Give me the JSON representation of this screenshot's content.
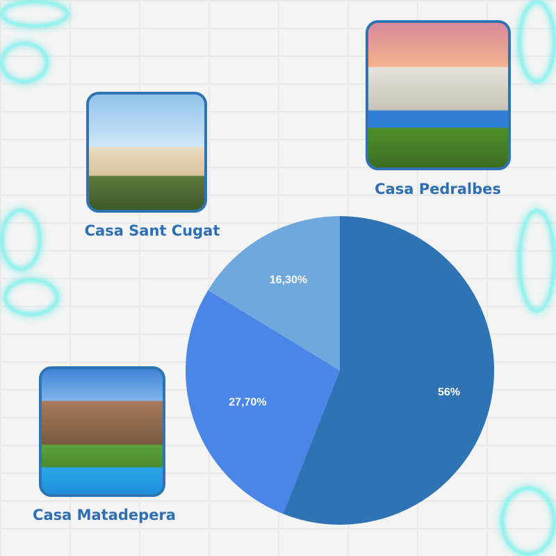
{
  "houses": [
    {
      "name": "Casa Sant Cugat"
    },
    {
      "name": "Casa Pedralbes"
    },
    {
      "name": "Casa Matadepera"
    }
  ],
  "chart_data": {
    "type": "pie",
    "values": [
      56,
      27.7,
      16.3
    ],
    "data_labels": [
      "56%",
      "27,70%",
      "16,30%"
    ],
    "colors": [
      "#2e74b5",
      "#4a86e8",
      "#6fa8dc"
    ],
    "start": "top",
    "direction": "clockwise"
  }
}
